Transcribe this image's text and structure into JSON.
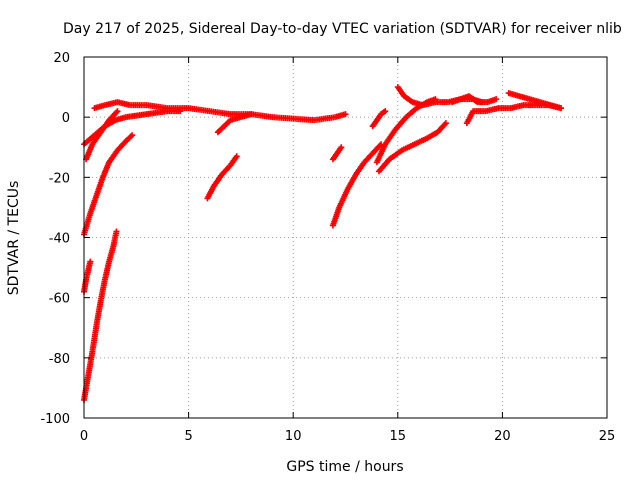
{
  "chart_data": {
    "type": "scatter",
    "title": "Day 217 of 2025, Sidereal Day-to-day VTEC variation (SDTVAR) for receiver nlib",
    "xlabel": "GPS time / hours",
    "ylabel": "SDTVAR / TECUs",
    "xlim": [
      0,
      25
    ],
    "ylim": [
      -100,
      20
    ],
    "xticks": [
      0,
      5,
      10,
      15,
      20,
      25
    ],
    "yticks": [
      -100,
      -80,
      -60,
      -40,
      -20,
      0,
      20
    ],
    "grid": true,
    "marker": "+",
    "color": "#ff0000",
    "segments": [
      {
        "x": [
          0.5,
          1.0,
          1.6,
          2.2,
          3.0,
          4.0,
          5.0,
          6.0,
          7.0,
          8.0,
          9.0,
          10.0,
          11.0,
          12.0,
          12.5
        ],
        "y": [
          3,
          4,
          5,
          4,
          4,
          3,
          3,
          2,
          1,
          1,
          0,
          -0.5,
          -1,
          0,
          1
        ]
      },
      {
        "x": [
          0.0,
          0.5,
          1.0,
          1.5,
          2.0,
          2.5,
          3.0,
          3.5,
          4.0,
          4.6
        ],
        "y": [
          -9,
          -6,
          -3,
          -1,
          0,
          0.5,
          1,
          1.5,
          2,
          2
        ]
      },
      {
        "x": [
          0.1,
          0.4,
          0.8,
          1.2,
          1.6
        ],
        "y": [
          -14,
          -9,
          -5,
          -1,
          2
        ]
      },
      {
        "x": [
          0.0,
          0.3,
          0.6,
          0.9,
          1.2,
          1.6,
          2.0,
          2.3
        ],
        "y": [
          -39,
          -32,
          -26,
          -20,
          -15,
          -11,
          -8,
          -6
        ]
      },
      {
        "x": [
          0.0,
          0.1,
          0.2,
          0.3
        ],
        "y": [
          -58,
          -54,
          -51,
          -48
        ]
      },
      {
        "x": [
          0.0,
          0.2,
          0.4,
          0.6,
          0.8,
          1.0,
          1.2,
          1.4,
          1.55
        ],
        "y": [
          -94,
          -86,
          -78,
          -69,
          -61,
          -54,
          -48,
          -43,
          -38
        ]
      },
      {
        "x": [
          5.9,
          6.2,
          6.6,
          7.0,
          7.3
        ],
        "y": [
          -27,
          -23,
          -19,
          -16,
          -13
        ]
      },
      {
        "x": [
          6.4,
          6.7,
          7.0,
          7.5,
          8.0
        ],
        "y": [
          -5,
          -3,
          -1,
          0,
          1
        ]
      },
      {
        "x": [
          11.9,
          12.1,
          12.3
        ],
        "y": [
          -14,
          -12,
          -10
        ]
      },
      {
        "x": [
          11.9,
          12.2,
          12.6,
          13.0,
          13.4,
          13.8,
          14.2
        ],
        "y": [
          -36,
          -30,
          -24,
          -19,
          -15,
          -12,
          -9
        ]
      },
      {
        "x": [
          13.8,
          14.0,
          14.2,
          14.4
        ],
        "y": [
          -3,
          -1,
          1,
          2
        ]
      },
      {
        "x": [
          14.0,
          14.4,
          14.9,
          15.4,
          15.9,
          16.4,
          16.8
        ],
        "y": [
          -15,
          -9,
          -4,
          0,
          3,
          5,
          6
        ]
      },
      {
        "x": [
          14.1,
          14.6,
          15.2,
          15.8,
          16.4,
          16.9,
          17.3
        ],
        "y": [
          -18,
          -14,
          -11,
          -9,
          -7,
          -5,
          -2
        ]
      },
      {
        "x": [
          15.0,
          15.3,
          15.7,
          16.2,
          16.8,
          17.4,
          18.0,
          18.6,
          19.0
        ],
        "y": [
          10,
          7,
          5,
          4,
          5,
          5,
          6,
          6,
          5
        ]
      },
      {
        "x": [
          17.6,
          18.0,
          18.4,
          18.8,
          19.3,
          19.7
        ],
        "y": [
          5,
          6,
          7,
          5,
          5,
          6
        ]
      },
      {
        "x": [
          18.3,
          18.6,
          19.2,
          19.8,
          20.4,
          21.0,
          21.6,
          22.2,
          22.8
        ],
        "y": [
          -2,
          2,
          2,
          3,
          3,
          4,
          4,
          4,
          3
        ]
      },
      {
        "x": [
          20.3,
          20.8,
          21.3,
          21.8,
          22.3,
          22.8
        ],
        "y": [
          8,
          7,
          6,
          5,
          4,
          3
        ]
      }
    ]
  }
}
